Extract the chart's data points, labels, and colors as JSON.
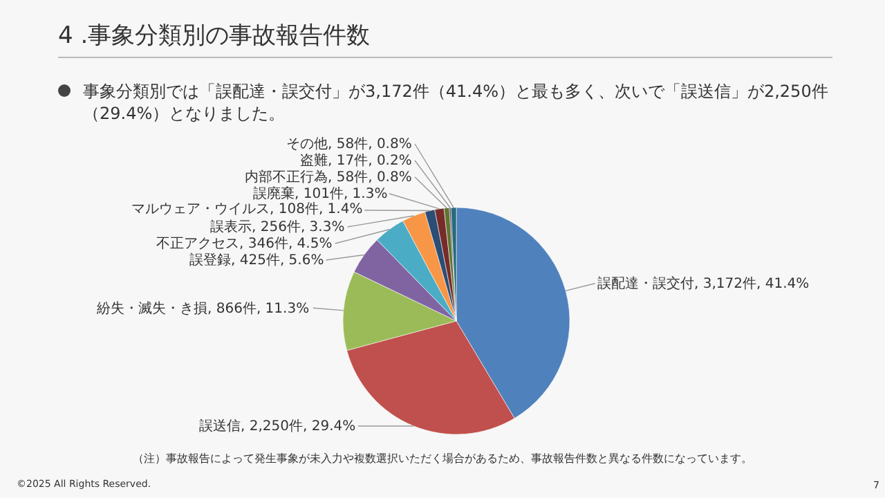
{
  "chart_data": {
    "type": "pie",
    "title": "4 .事象分類別の事故報告件数",
    "subtitle": "事象分類別では「誤配達・誤交付」が3,172件（41.4%）と最も多く、次いで「誤送信」が2,250件（29.4%）となりました。",
    "categories": [
      "誤配達・誤交付",
      "誤送信",
      "紛失・滅失・き損",
      "誤登録",
      "不正アクセス",
      "誤表示",
      "マルウェア・ウイルス",
      "誤廃棄",
      "内部不正行為",
      "盗難",
      "その他"
    ],
    "values": [
      3172,
      2250,
      866,
      425,
      346,
      256,
      108,
      101,
      58,
      17,
      58
    ],
    "value_labels": [
      "3,172件, 41.4%",
      "2,250件, 29.4%",
      "866件, 11.3%",
      "425件, 5.6%",
      "346件, 4.5%",
      "256件, 3.3%",
      "108件, 1.4%",
      "101件, 1.3%",
      "58件, 0.8%",
      "17件, 0.2%",
      "58件, 0.8%"
    ],
    "colors": [
      "#4f81bd",
      "#c0504d",
      "#9bbb59",
      "#8064a2",
      "#4bacc6",
      "#f79646",
      "#2c4d75",
      "#772c2a",
      "#5f7530",
      "#4d3b62",
      "#276a7c"
    ],
    "legend": false,
    "annotations": [
      "（注）事故報告によって発生事象が未入力や複数選択いただく場合があるため、事故報告件数と異なる件数になっています。",
      "©2025 All Rights Reserved.",
      "7"
    ]
  }
}
